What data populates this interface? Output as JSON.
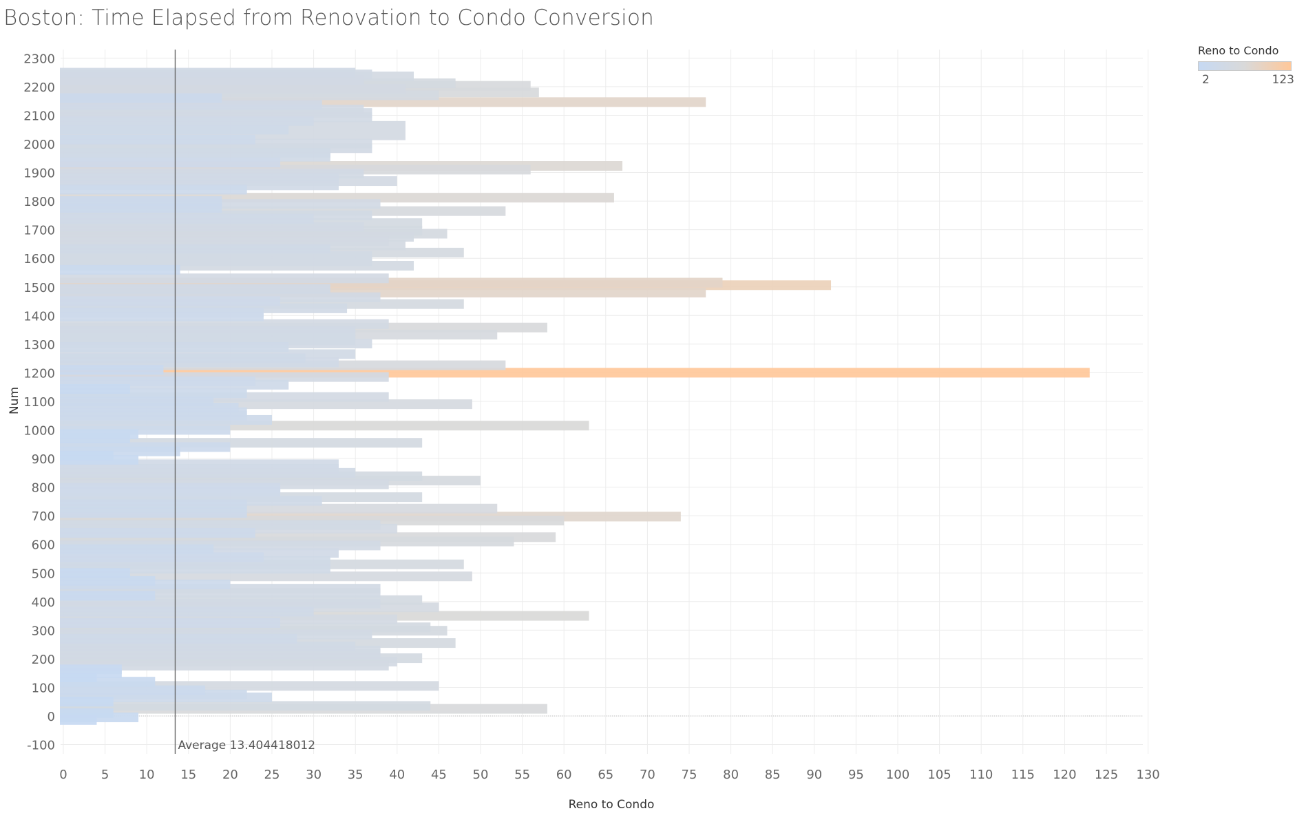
{
  "title": "Boston: Time Elapsed from Renovation to Condo Conversion",
  "legend": {
    "title": "Reno to Condo",
    "min_label": "2",
    "max_label": "123",
    "colors": [
      "#c6d9f3",
      "#d9d9d9",
      "#ffc89a"
    ]
  },
  "chart_data": {
    "type": "bar",
    "orientation": "horizontal",
    "xlabel": "Reno to Condo",
    "ylabel": "Num",
    "xlim": [
      0,
      130
    ],
    "ylim": [
      -100,
      2300
    ],
    "x_ticks": [
      0,
      5,
      10,
      15,
      20,
      25,
      30,
      35,
      40,
      45,
      50,
      55,
      60,
      65,
      70,
      75,
      80,
      85,
      90,
      95,
      100,
      105,
      110,
      115,
      120,
      125,
      130
    ],
    "y_ticks": [
      -100,
      0,
      100,
      200,
      300,
      400,
      500,
      600,
      700,
      800,
      900,
      1000,
      1100,
      1200,
      1300,
      1400,
      1500,
      1600,
      1700,
      1800,
      1900,
      2000,
      2100,
      2200,
      2300
    ],
    "grid": true,
    "color_scale": {
      "field": "Reno to Condo",
      "min": 2,
      "max": 123
    },
    "reference_line": {
      "value": 13.404418012,
      "label": "Average 13.404418012"
    },
    "bars": [
      {
        "num": 2249,
        "value": 35
      },
      {
        "num": 2243,
        "value": 37
      },
      {
        "num": 2236,
        "value": 42
      },
      {
        "num": 2224,
        "value": 36
      },
      {
        "num": 2212,
        "value": 47
      },
      {
        "num": 2203,
        "value": 56
      },
      {
        "num": 2193,
        "value": 41
      },
      {
        "num": 2180,
        "value": 57
      },
      {
        "num": 2170,
        "value": 45
      },
      {
        "num": 2160,
        "value": 19
      },
      {
        "num": 2146,
        "value": 77
      },
      {
        "num": 2136,
        "value": 31
      },
      {
        "num": 2120,
        "value": 36
      },
      {
        "num": 2108,
        "value": 37
      },
      {
        "num": 2093,
        "value": 37
      },
      {
        "num": 2080,
        "value": 30
      },
      {
        "num": 2063,
        "value": 41
      },
      {
        "num": 2050,
        "value": 27
      },
      {
        "num": 2030,
        "value": 41
      },
      {
        "num": 2015,
        "value": 23
      },
      {
        "num": 2001,
        "value": 37
      },
      {
        "num": 1985,
        "value": 37
      },
      {
        "num": 1968,
        "value": 32
      },
      {
        "num": 1955,
        "value": 32
      },
      {
        "num": 1935,
        "value": 26
      },
      {
        "num": 1923,
        "value": 67
      },
      {
        "num": 1910,
        "value": 56
      },
      {
        "num": 1896,
        "value": 36
      },
      {
        "num": 1880,
        "value": 33
      },
      {
        "num": 1870,
        "value": 40
      },
      {
        "num": 1855,
        "value": 33
      },
      {
        "num": 1840,
        "value": 22
      },
      {
        "num": 1812,
        "value": 66
      },
      {
        "num": 1800,
        "value": 19
      },
      {
        "num": 1790,
        "value": 38
      },
      {
        "num": 1775,
        "value": 19
      },
      {
        "num": 1765,
        "value": 53
      },
      {
        "num": 1750,
        "value": 37
      },
      {
        "num": 1738,
        "value": 30
      },
      {
        "num": 1723,
        "value": 43
      },
      {
        "num": 1710,
        "value": 36
      },
      {
        "num": 1697,
        "value": 43
      },
      {
        "num": 1686,
        "value": 46
      },
      {
        "num": 1675,
        "value": 42
      },
      {
        "num": 1660,
        "value": 39
      },
      {
        "num": 1646,
        "value": 41
      },
      {
        "num": 1633,
        "value": 32
      },
      {
        "num": 1620,
        "value": 48
      },
      {
        "num": 1608,
        "value": 37
      },
      {
        "num": 1590,
        "value": 37
      },
      {
        "num": 1574,
        "value": 42
      },
      {
        "num": 1560,
        "value": 14
      },
      {
        "num": 1530,
        "value": 39
      },
      {
        "num": 1515,
        "value": 79
      },
      {
        "num": 1506,
        "value": 92
      },
      {
        "num": 1493,
        "value": 32
      },
      {
        "num": 1480,
        "value": 77
      },
      {
        "num": 1464,
        "value": 38
      },
      {
        "num": 1450,
        "value": 26
      },
      {
        "num": 1440,
        "value": 48
      },
      {
        "num": 1425,
        "value": 34
      },
      {
        "num": 1410,
        "value": 24
      },
      {
        "num": 1397,
        "value": 24
      },
      {
        "num": 1370,
        "value": 39
      },
      {
        "num": 1358,
        "value": 58
      },
      {
        "num": 1345,
        "value": 35
      },
      {
        "num": 1333,
        "value": 52
      },
      {
        "num": 1313,
        "value": 35
      },
      {
        "num": 1302,
        "value": 37
      },
      {
        "num": 1290,
        "value": 27
      },
      {
        "num": 1265,
        "value": 35
      },
      {
        "num": 1250,
        "value": 29
      },
      {
        "num": 1236,
        "value": 33
      },
      {
        "num": 1226,
        "value": 53
      },
      {
        "num": 1210,
        "value": 12
      },
      {
        "num": 1200,
        "value": 123
      },
      {
        "num": 1185,
        "value": 39
      },
      {
        "num": 1170,
        "value": 23
      },
      {
        "num": 1158,
        "value": 27
      },
      {
        "num": 1143,
        "value": 8
      },
      {
        "num": 1128,
        "value": 22
      },
      {
        "num": 1115,
        "value": 39
      },
      {
        "num": 1100,
        "value": 18
      },
      {
        "num": 1090,
        "value": 49
      },
      {
        "num": 1078,
        "value": 21
      },
      {
        "num": 1062,
        "value": 22
      },
      {
        "num": 1050,
        "value": 22
      },
      {
        "num": 1035,
        "value": 25
      },
      {
        "num": 1015,
        "value": 63
      },
      {
        "num": 1000,
        "value": 20
      },
      {
        "num": 985,
        "value": 9
      },
      {
        "num": 970,
        "value": 8
      },
      {
        "num": 955,
        "value": 43
      },
      {
        "num": 940,
        "value": 20
      },
      {
        "num": 925,
        "value": 14
      },
      {
        "num": 910,
        "value": 6
      },
      {
        "num": 895,
        "value": 9
      },
      {
        "num": 880,
        "value": 33
      },
      {
        "num": 864,
        "value": 33
      },
      {
        "num": 850,
        "value": 35
      },
      {
        "num": 838,
        "value": 43
      },
      {
        "num": 823,
        "value": 50
      },
      {
        "num": 810,
        "value": 39
      },
      {
        "num": 798,
        "value": 26
      },
      {
        "num": 785,
        "value": 26
      },
      {
        "num": 765,
        "value": 43
      },
      {
        "num": 752,
        "value": 31
      },
      {
        "num": 740,
        "value": 22
      },
      {
        "num": 725,
        "value": 52
      },
      {
        "num": 710,
        "value": 22
      },
      {
        "num": 697,
        "value": 74
      },
      {
        "num": 683,
        "value": 60
      },
      {
        "num": 668,
        "value": 38
      },
      {
        "num": 655,
        "value": 40
      },
      {
        "num": 640,
        "value": 23
      },
      {
        "num": 625,
        "value": 59
      },
      {
        "num": 610,
        "value": 54
      },
      {
        "num": 596,
        "value": 38
      },
      {
        "num": 583,
        "value": 18
      },
      {
        "num": 570,
        "value": 33
      },
      {
        "num": 555,
        "value": 24
      },
      {
        "num": 542,
        "value": 32
      },
      {
        "num": 530,
        "value": 48
      },
      {
        "num": 515,
        "value": 32
      },
      {
        "num": 500,
        "value": 8
      },
      {
        "num": 488,
        "value": 49
      },
      {
        "num": 472,
        "value": 11
      },
      {
        "num": 460,
        "value": 20
      },
      {
        "num": 445,
        "value": 38
      },
      {
        "num": 430,
        "value": 38
      },
      {
        "num": 420,
        "value": 11
      },
      {
        "num": 405,
        "value": 43
      },
      {
        "num": 393,
        "value": 38
      },
      {
        "num": 380,
        "value": 45
      },
      {
        "num": 365,
        "value": 30
      },
      {
        "num": 350,
        "value": 63
      },
      {
        "num": 338,
        "value": 40
      },
      {
        "num": 325,
        "value": 26
      },
      {
        "num": 310,
        "value": 44
      },
      {
        "num": 298,
        "value": 46
      },
      {
        "num": 285,
        "value": 37
      },
      {
        "num": 270,
        "value": 28
      },
      {
        "num": 255,
        "value": 47
      },
      {
        "num": 243,
        "value": 35
      },
      {
        "num": 228,
        "value": 38
      },
      {
        "num": 216,
        "value": 38
      },
      {
        "num": 202,
        "value": 43
      },
      {
        "num": 190,
        "value": 40
      },
      {
        "num": 176,
        "value": 39
      },
      {
        "num": 163,
        "value": 7
      },
      {
        "num": 150,
        "value": 7
      },
      {
        "num": 135,
        "value": 4
      },
      {
        "num": 120,
        "value": 11
      },
      {
        "num": 105,
        "value": 45
      },
      {
        "num": 90,
        "value": 17
      },
      {
        "num": 75,
        "value": 22
      },
      {
        "num": 65,
        "value": 25
      },
      {
        "num": 50,
        "value": 6
      },
      {
        "num": 35,
        "value": 44
      },
      {
        "num": 25,
        "value": 58
      },
      {
        "num": 10,
        "value": 6
      },
      {
        "num": -5,
        "value": 9
      },
      {
        "num": -14,
        "value": 4
      }
    ]
  }
}
